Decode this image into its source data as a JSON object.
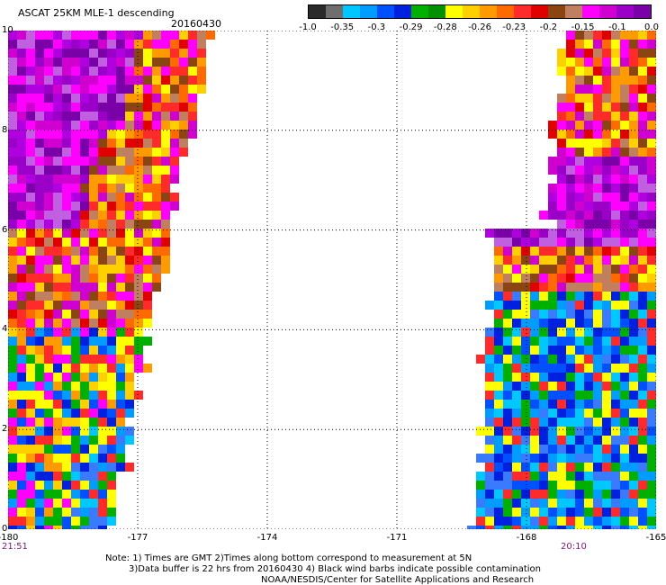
{
  "header": {
    "title": "ASCAT 25KM MLE-1 descending",
    "date": "20160430"
  },
  "colorbar": {
    "labels": [
      "-1.0",
      "-0.35",
      "-0.3",
      "-0.29",
      "-0.28",
      "-0.26",
      "-0.23",
      "-0.2",
      "-0.15",
      "-0.1",
      "0.0"
    ],
    "colors": [
      "#2a2a2a",
      "#6e6e6e",
      "#00c8ff",
      "#009cff",
      "#0050ff",
      "#0020e0",
      "#00b000",
      "#009000",
      "#ffff00",
      "#ffd000",
      "#ff9a00",
      "#ff6a00",
      "#ff2a2a",
      "#e00000",
      "#8b4513",
      "#c08060",
      "#ff00ff",
      "#d000d0",
      "#9a00c8",
      "#7a00a8"
    ]
  },
  "axes": {
    "x_ticks": [
      "-180",
      "-177",
      "-174",
      "-171",
      "-168",
      "-165"
    ],
    "y_ticks": [
      "10",
      "8",
      "6",
      "4",
      "2",
      "0"
    ],
    "time_left": "21:51",
    "time_right": "20:10"
  },
  "notes": {
    "line1": "Note: 1) Times are GMT 2)Times along bottom correspond to measurement at 5N",
    "line2": "3)Data buffer is 22 hrs from 20160430 4) Black wind barbs indicate possible contamination",
    "line3": "NOAA/NESDIS/Center for Satellite Applications and Research"
  }
}
